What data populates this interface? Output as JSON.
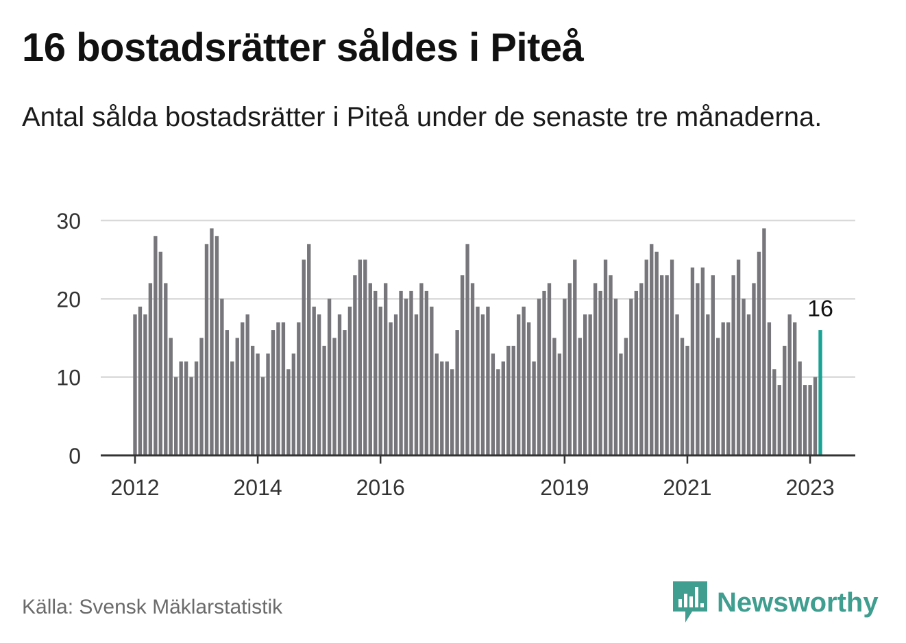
{
  "title": "16 bostadsrätter såldes i Piteå",
  "subtitle": "Antal sålda bostadsrätter i Piteå under de senaste tre månaderna.",
  "source": "Källa: Svensk Mäklarstatistik",
  "brand": {
    "name": "Newsworthy",
    "icon": "newsworthy-logo-icon",
    "color": "#3f9e8f"
  },
  "colors": {
    "bar": "#77767b",
    "highlight": "#1aa394",
    "grid": "#d9d9d9",
    "axis": "#333333"
  },
  "chart_data": {
    "type": "bar",
    "ylim": [
      0,
      30
    ],
    "yticks": [
      0,
      10,
      20,
      30
    ],
    "grid": true,
    "x_tick_labels": [
      {
        "label": "2012",
        "index": 0
      },
      {
        "label": "2014",
        "index": 24
      },
      {
        "label": "2016",
        "index": 48
      },
      {
        "label": "2019",
        "index": 84
      },
      {
        "label": "2021",
        "index": 108
      },
      {
        "label": "2023",
        "index": 132
      }
    ],
    "values": [
      18,
      19,
      18,
      22,
      28,
      26,
      22,
      15,
      10,
      12,
      12,
      10,
      12,
      15,
      27,
      29,
      28,
      20,
      16,
      12,
      15,
      17,
      18,
      14,
      13,
      10,
      13,
      16,
      17,
      17,
      11,
      13,
      17,
      25,
      27,
      19,
      18,
      14,
      20,
      15,
      18,
      16,
      19,
      23,
      25,
      25,
      22,
      21,
      19,
      22,
      17,
      18,
      21,
      20,
      21,
      18,
      22,
      21,
      19,
      13,
      12,
      12,
      11,
      16,
      23,
      27,
      22,
      19,
      18,
      19,
      13,
      11,
      12,
      14,
      14,
      18,
      19,
      17,
      12,
      20,
      21,
      22,
      15,
      13,
      20,
      22,
      25,
      15,
      18,
      18,
      22,
      21,
      25,
      23,
      20,
      13,
      15,
      20,
      21,
      22,
      25,
      27,
      26,
      23,
      23,
      25,
      18,
      15,
      14,
      24,
      22,
      24,
      18,
      23,
      15,
      17,
      17,
      23,
      25,
      20,
      18,
      22,
      26,
      29,
      17,
      11,
      9,
      14,
      18,
      17,
      12,
      9,
      9,
      10,
      16
    ],
    "highlight_label": "16"
  }
}
